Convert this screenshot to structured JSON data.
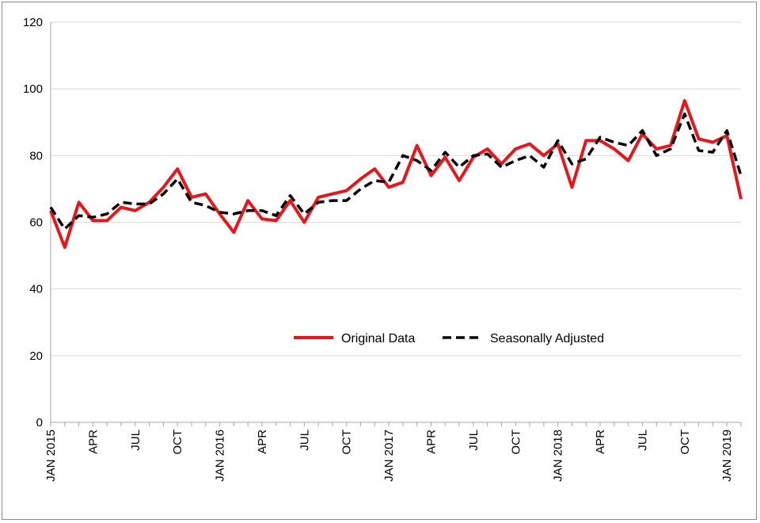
{
  "chart_data": {
    "type": "line",
    "ylim": [
      0,
      120
    ],
    "yticks": [
      0,
      20,
      40,
      60,
      80,
      100,
      120
    ],
    "grid": "horizontal",
    "legend_position": "lower-center",
    "x_tick_labels": [
      {
        "index": 0,
        "label": "JAN 2015"
      },
      {
        "index": 3,
        "label": "APR"
      },
      {
        "index": 6,
        "label": "JUL"
      },
      {
        "index": 9,
        "label": "OCT"
      },
      {
        "index": 12,
        "label": "JAN 2016"
      },
      {
        "index": 15,
        "label": "APR"
      },
      {
        "index": 18,
        "label": "JUL"
      },
      {
        "index": 21,
        "label": "OCT"
      },
      {
        "index": 24,
        "label": "JAN 2017"
      },
      {
        "index": 27,
        "label": "APR"
      },
      {
        "index": 30,
        "label": "JUL"
      },
      {
        "index": 33,
        "label": "OCT"
      },
      {
        "index": 36,
        "label": "JAN 2018"
      },
      {
        "index": 39,
        "label": "APR"
      },
      {
        "index": 42,
        "label": "JUL"
      },
      {
        "index": 45,
        "label": "OCT"
      },
      {
        "index": 48,
        "label": "JAN 2019"
      }
    ],
    "x": [
      "2015-01",
      "2015-02",
      "2015-03",
      "2015-04",
      "2015-05",
      "2015-06",
      "2015-07",
      "2015-08",
      "2015-09",
      "2015-10",
      "2015-11",
      "2015-12",
      "2016-01",
      "2016-02",
      "2016-03",
      "2016-04",
      "2016-05",
      "2016-06",
      "2016-07",
      "2016-08",
      "2016-09",
      "2016-10",
      "2016-11",
      "2016-12",
      "2017-01",
      "2017-02",
      "2017-03",
      "2017-04",
      "2017-05",
      "2017-06",
      "2017-07",
      "2017-08",
      "2017-09",
      "2017-10",
      "2017-11",
      "2017-12",
      "2018-01",
      "2018-02",
      "2018-03",
      "2018-04",
      "2018-05",
      "2018-06",
      "2018-07",
      "2018-08",
      "2018-09",
      "2018-10",
      "2018-11",
      "2018-12",
      "2019-01",
      "2019-02"
    ],
    "series": [
      {
        "name": "Original Data",
        "color": "#e8161b",
        "style": "solid",
        "values": [
          63.5,
          52.5,
          66,
          60.5,
          60.5,
          64.5,
          63.5,
          66,
          70.5,
          76,
          67.5,
          68.5,
          62.5,
          57,
          66.5,
          61,
          60.5,
          66.5,
          60,
          67.5,
          68.5,
          69.5,
          73,
          76,
          70.5,
          72,
          83,
          74,
          79.5,
          72.5,
          79.5,
          82,
          77.5,
          82,
          83.5,
          80,
          83.5,
          70.5,
          84.5,
          84.5,
          82,
          78.5,
          86.5,
          82,
          83,
          96.5,
          85,
          84,
          86,
          67
        ]
      },
      {
        "name": "Seasonally Adjusted",
        "color": "#000000",
        "style": "dashed",
        "values": [
          64.5,
          58,
          62,
          61.5,
          62.5,
          66,
          65.5,
          65.5,
          68.5,
          73,
          66,
          65,
          63,
          62.5,
          63.5,
          63.5,
          62,
          68,
          62.5,
          66,
          66.5,
          66.5,
          70,
          72.5,
          72,
          80,
          78.5,
          75.5,
          81,
          76.5,
          80,
          80.5,
          76.5,
          78.5,
          80,
          76.5,
          84.5,
          77.5,
          79,
          85.5,
          84,
          83,
          87.5,
          80,
          82,
          92.5,
          81.5,
          81,
          87.5,
          74
        ]
      }
    ]
  }
}
